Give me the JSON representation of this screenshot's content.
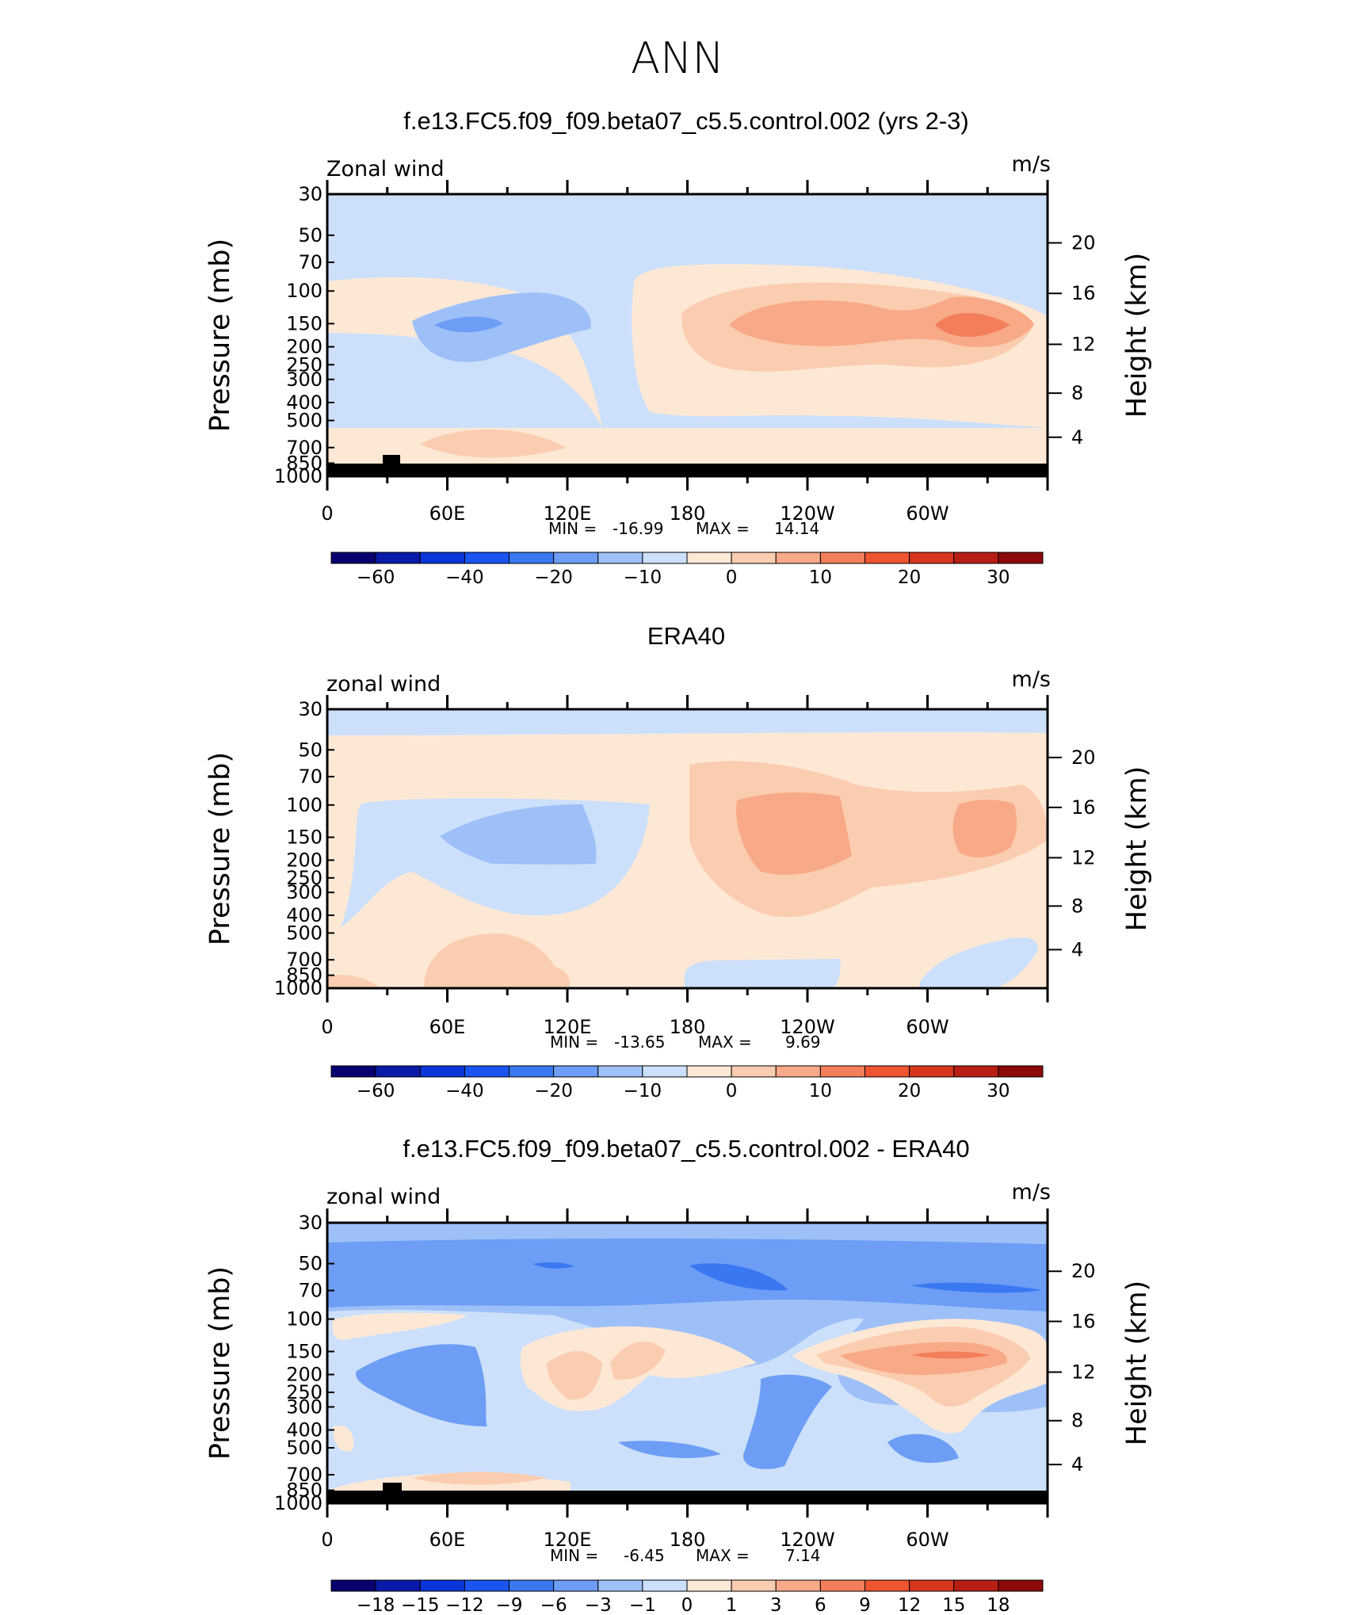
{
  "page_title": "ANN",
  "chart_data": [
    {
      "type": "heatmap",
      "title": "f.e13.FC5.f09_f09.beta07_c5.5.control.002 (yrs 2-3)",
      "variable_label": "Zonal wind",
      "units": "m/s",
      "xlabel": "",
      "ylabel": "Pressure (mb)",
      "ylabel_right": "Height (km)",
      "x_ticks": [
        "0",
        "60E",
        "120E",
        "180",
        "120W",
        "60W"
      ],
      "y_ticks": [
        "30",
        "50",
        "70",
        "100",
        "150",
        "200",
        "250",
        "300",
        "400",
        "500",
        "700",
        "850",
        "1000"
      ],
      "y_right_ticks": [
        "20",
        "16",
        "12",
        "8",
        "4"
      ],
      "stats": {
        "min_label": "MIN =",
        "min": "-16.99",
        "max_label": "MAX =",
        "max": "14.14"
      },
      "colorbar": {
        "levels": [
          -70,
          -60,
          -50,
          -40,
          -30,
          -20,
          -15,
          -10,
          -5,
          0,
          5,
          10,
          15,
          20,
          25,
          30
        ],
        "labels": [
          "-60",
          "-40",
          "-20",
          "-10",
          "0",
          "10",
          "20",
          "30"
        ],
        "colors": [
          "#08006e",
          "#0a1aa8",
          "#0a35d8",
          "#1a55f0",
          "#3a78f2",
          "#6d9df5",
          "#9ec0f8",
          "#cce0fb",
          "#fde8d5",
          "#fbcdb0",
          "#f8a988",
          "#f37f5a",
          "#ee5530",
          "#d8361c",
          "#b81e14",
          "#8c0a0a"
        ]
      },
      "has_topography": true
    },
    {
      "type": "heatmap",
      "title": "ERA40",
      "variable_label": "zonal wind",
      "units": "m/s",
      "xlabel": "",
      "ylabel": "Pressure (mb)",
      "ylabel_right": "Height (km)",
      "x_ticks": [
        "0",
        "60E",
        "120E",
        "180",
        "120W",
        "60W"
      ],
      "y_ticks": [
        "30",
        "50",
        "70",
        "100",
        "150",
        "200",
        "250",
        "300",
        "400",
        "500",
        "700",
        "850",
        "1000"
      ],
      "y_right_ticks": [
        "20",
        "16",
        "12",
        "8",
        "4"
      ],
      "stats": {
        "min_label": "MIN =",
        "min": "-13.65",
        "max_label": "MAX =",
        "max": "9.69"
      },
      "colorbar": {
        "levels": [
          -70,
          -60,
          -50,
          -40,
          -30,
          -20,
          -15,
          -10,
          -5,
          0,
          5,
          10,
          15,
          20,
          25,
          30
        ],
        "labels": [
          "-60",
          "-40",
          "-20",
          "-10",
          "0",
          "10",
          "20",
          "30"
        ],
        "colors": [
          "#08006e",
          "#0a1aa8",
          "#0a35d8",
          "#1a55f0",
          "#3a78f2",
          "#6d9df5",
          "#9ec0f8",
          "#cce0fb",
          "#fde8d5",
          "#fbcdb0",
          "#f8a988",
          "#f37f5a",
          "#ee5530",
          "#d8361c",
          "#b81e14",
          "#8c0a0a"
        ]
      },
      "has_topography": false
    },
    {
      "type": "heatmap",
      "title": "f.e13.FC5.f09_f09.beta07_c5.5.control.002 - ERA40",
      "variable_label": "zonal wind",
      "units": "m/s",
      "xlabel": "",
      "ylabel": "Pressure (mb)",
      "ylabel_right": "Height (km)",
      "x_ticks": [
        "0",
        "60E",
        "120E",
        "180",
        "120W",
        "60W"
      ],
      "y_ticks": [
        "30",
        "50",
        "70",
        "100",
        "150",
        "200",
        "250",
        "300",
        "400",
        "500",
        "700",
        "850",
        "1000"
      ],
      "y_right_ticks": [
        "20",
        "16",
        "12",
        "8",
        "4"
      ],
      "stats": {
        "min_label": "MIN =",
        "min": "-6.45",
        "max_label": "MAX =",
        "max": "7.14"
      },
      "colorbar": {
        "levels": [
          -21,
          -18,
          -15,
          -12,
          -9,
          -6,
          -3,
          -1,
          0,
          1,
          3,
          6,
          9,
          12,
          15,
          18
        ],
        "labels": [
          "-18",
          "-15",
          "-12",
          "-9",
          "-6",
          "-3",
          "-1",
          "0",
          "1",
          "3",
          "6",
          "9",
          "12",
          "15",
          "18"
        ],
        "colors": [
          "#08006e",
          "#0a1aa8",
          "#0a35d8",
          "#1a55f0",
          "#3a78f2",
          "#6d9df5",
          "#9ec0f8",
          "#cce0fb",
          "#fde8d5",
          "#fbcdb0",
          "#f8a988",
          "#f37f5a",
          "#ee5530",
          "#d8361c",
          "#b81e14",
          "#8c0a0a"
        ]
      },
      "has_topography": true
    }
  ]
}
